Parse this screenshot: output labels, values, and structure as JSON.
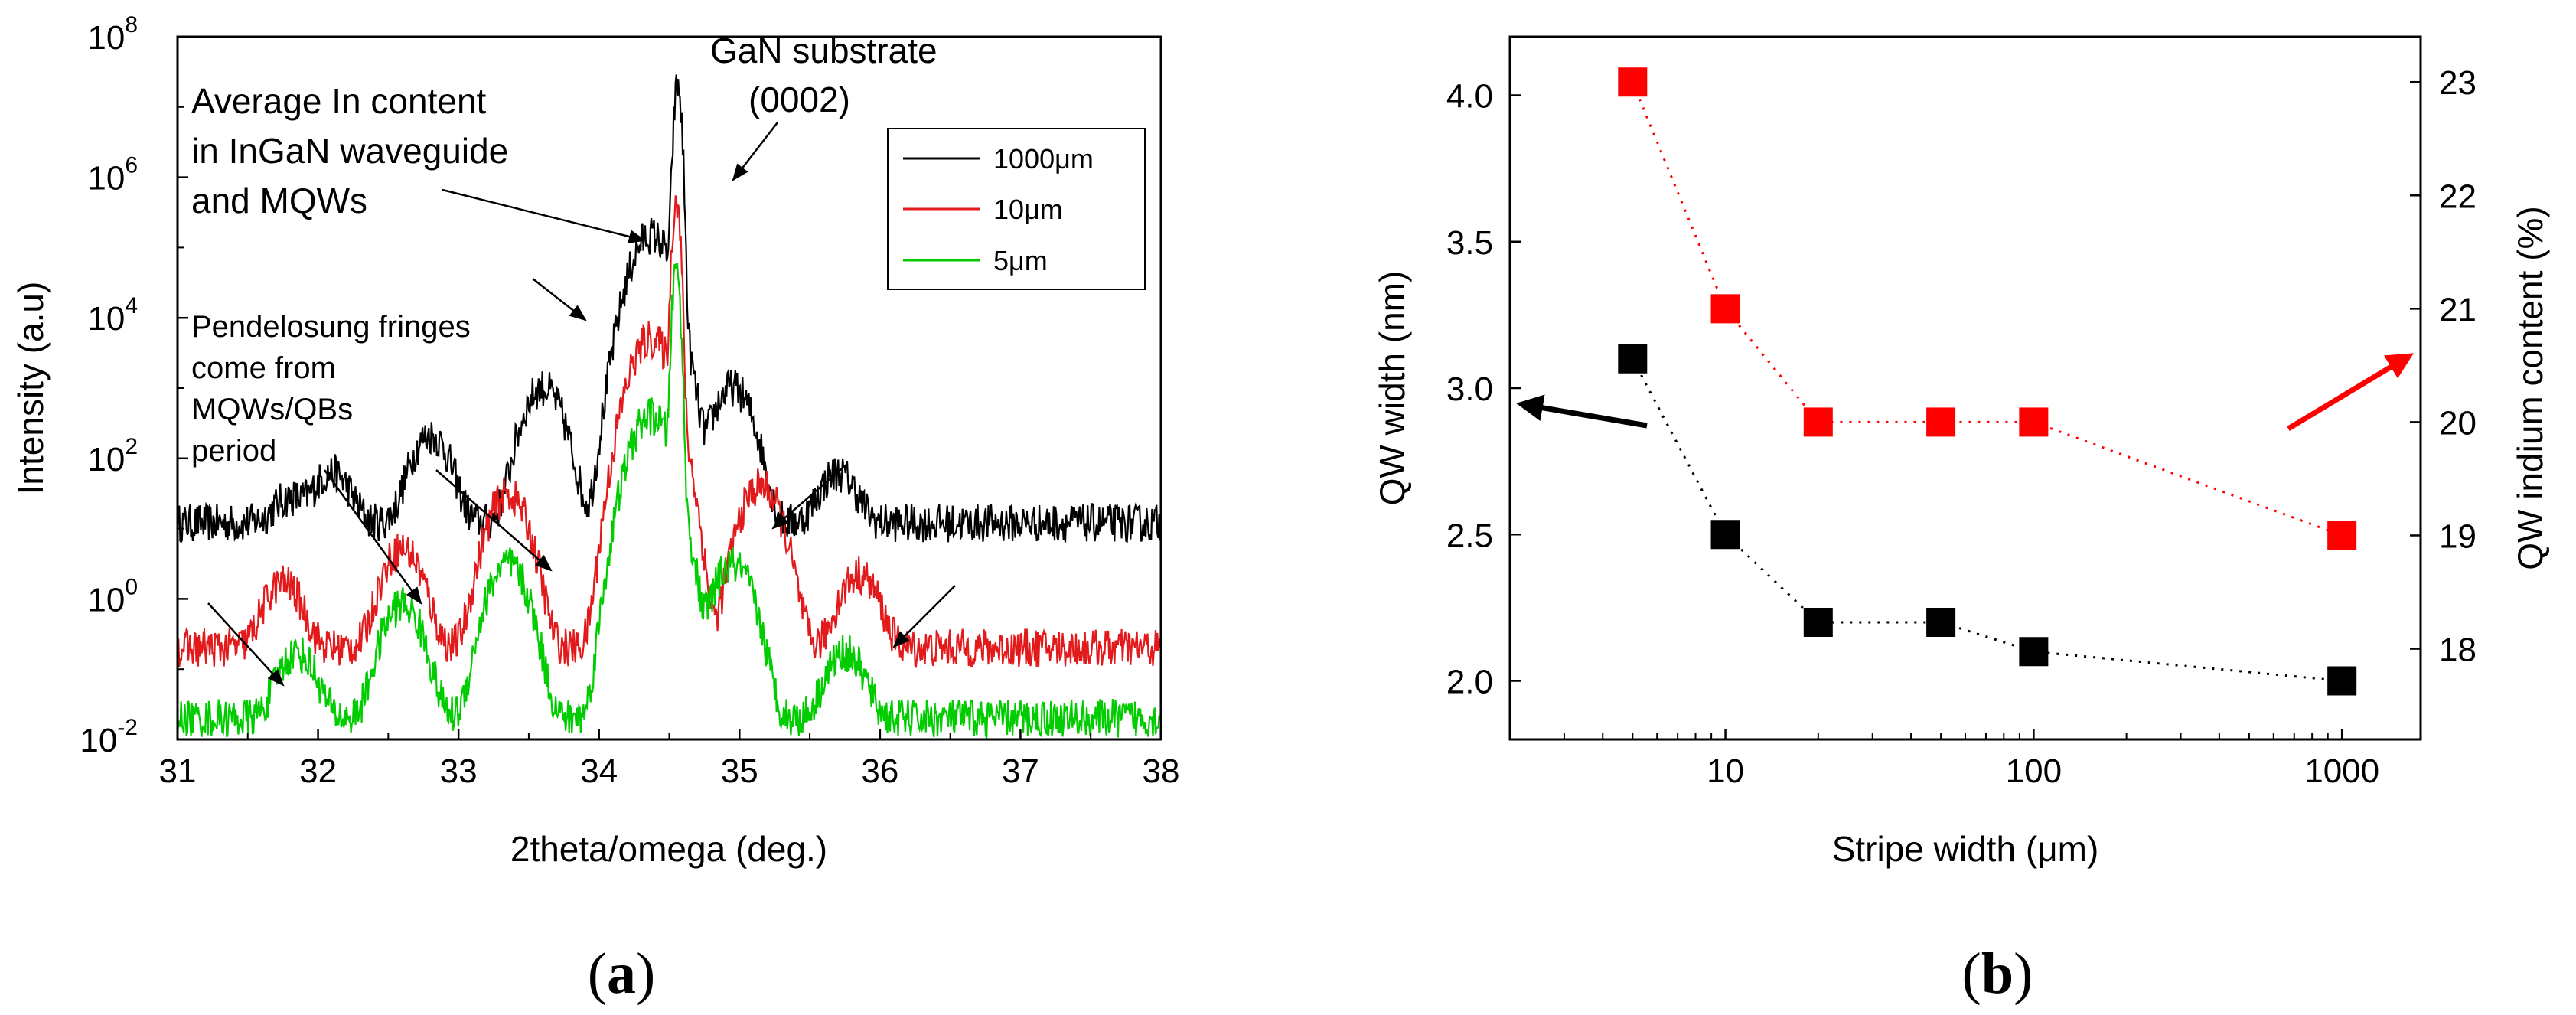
{
  "panels": {
    "a": {
      "label_open": "(",
      "label_letter": "a",
      "label_close": ")"
    },
    "b": {
      "label_open": "(",
      "label_letter": "b",
      "label_close": ")"
    }
  },
  "chart_data": [
    {
      "id": "a",
      "type": "line",
      "xlabel": "2theta/omega (deg.)",
      "ylabel": "Intensity (a.u)",
      "xlim": [
        31,
        38
      ],
      "ylim": [
        0.01,
        100000000
      ],
      "yscale": "log",
      "grid": false,
      "x_ticks": [
        "31",
        "32",
        "33",
        "34",
        "35",
        "36",
        "37",
        "38"
      ],
      "y_ticks": [
        {
          "base": "10",
          "exp": "-2",
          "value": 0.01
        },
        {
          "base": "10",
          "exp": "0",
          "value": 1
        },
        {
          "base": "10",
          "exp": "2",
          "value": 100
        },
        {
          "base": "10",
          "exp": "4",
          "value": 10000
        },
        {
          "base": "10",
          "exp": "6",
          "value": 1000000
        },
        {
          "base": "10",
          "exp": "8",
          "value": 100000000
        }
      ],
      "legend_position": "top-right",
      "series": [
        {
          "name": "1000μm",
          "color": "#000000",
          "background": 12,
          "peaks": [
            {
              "x": 31.8,
              "y": 15
            },
            {
              "x": 32.1,
              "y": 50
            },
            {
              "x": 32.8,
              "y": 200
            },
            {
              "x": 33.6,
              "y": 1000
            },
            {
              "x": 34.37,
              "y": 150000
            },
            {
              "x": 34.56,
              "y": 20000000
            },
            {
              "x": 34.95,
              "y": 1000
            },
            {
              "x": 35.7,
              "y": 50
            }
          ]
        },
        {
          "name": "10μm",
          "color": "#e31a1c",
          "background": 0.2,
          "peaks": [
            {
              "x": 31.75,
              "y": 1.5
            },
            {
              "x": 32.6,
              "y": 5
            },
            {
              "x": 33.35,
              "y": 30
            },
            {
              "x": 34.37,
              "y": 5000
            },
            {
              "x": 34.55,
              "y": 500000
            },
            {
              "x": 35.15,
              "y": 40
            },
            {
              "x": 35.85,
              "y": 2
            }
          ]
        },
        {
          "name": "5μm",
          "color": "#00cc00",
          "background": 0.02,
          "peaks": [
            {
              "x": 31.85,
              "y": 0.15
            },
            {
              "x": 32.6,
              "y": 0.8
            },
            {
              "x": 33.35,
              "y": 3
            },
            {
              "x": 34.37,
              "y": 400
            },
            {
              "x": 34.55,
              "y": 50000
            },
            {
              "x": 34.95,
              "y": 3
            },
            {
              "x": 35.75,
              "y": 0.15
            }
          ]
        }
      ],
      "annotations": [
        {
          "id": "gan1",
          "text": "GaN substrate"
        },
        {
          "id": "gan2",
          "text": "(0002)"
        },
        {
          "id": "avg1",
          "text": "Average In content"
        },
        {
          "id": "avg2",
          "text": "in InGaN waveguide"
        },
        {
          "id": "avg3",
          "text": "and MQWs"
        },
        {
          "id": "pen1",
          "text": "Pendelosung fringes"
        },
        {
          "id": "pen2",
          "text": "come from"
        },
        {
          "id": "pen3",
          "text": "MQWs/QBs"
        },
        {
          "id": "pen4",
          "text": "period"
        }
      ]
    },
    {
      "id": "b",
      "type": "scatter",
      "xlabel": "Stripe width (μm)",
      "ylabel": "QW width (nm)",
      "y2label": "QW indium content (%)",
      "xscale": "log",
      "xlim": [
        2,
        1800
      ],
      "ylim": [
        1.8,
        4.2
      ],
      "y2lim": [
        17.2,
        23.4
      ],
      "grid": false,
      "x_ticks": [
        {
          "label": "10",
          "value": 10
        },
        {
          "label": "100",
          "value": 100
        },
        {
          "label": "1000",
          "value": 1000
        }
      ],
      "y_ticks": [
        "2.0",
        "2.5",
        "3.0",
        "3.5",
        "4.0"
      ],
      "y2_ticks": [
        "18",
        "19",
        "20",
        "21",
        "22",
        "23"
      ],
      "series": [
        {
          "name": "",
          "axis": "left",
          "color": "#000000",
          "x": [
            5,
            10,
            20,
            50,
            100,
            1000
          ],
          "y": [
            3.1,
            2.5,
            2.2,
            2.2,
            2.1,
            2.0
          ]
        },
        {
          "name": "",
          "axis": "right",
          "color": "#ff0000",
          "x": [
            5,
            10,
            20,
            50,
            100,
            1000
          ],
          "y": [
            23,
            21,
            20,
            20,
            20,
            19
          ]
        }
      ]
    }
  ]
}
